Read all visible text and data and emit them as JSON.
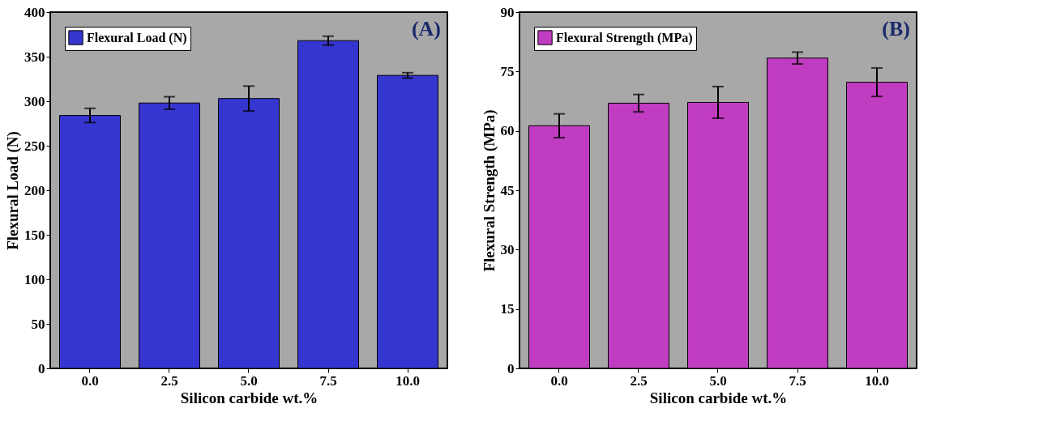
{
  "chart_data": [
    {
      "type": "bar",
      "xlabel": "Silicon carbide wt.%",
      "ylabel": "Flexural Load (N)",
      "categories": [
        "0.0",
        "2.5",
        "5.0",
        "7.5",
        "10.0"
      ],
      "series": [
        {
          "name": "Flexural Load (N)",
          "color": "#3535d0",
          "values": [
            284,
            298,
            303,
            368,
            329
          ],
          "errors": [
            8,
            7,
            14,
            5,
            3
          ]
        }
      ],
      "ylim": [
        0,
        400
      ],
      "yticks": [
        0,
        50,
        100,
        150,
        200,
        250,
        300,
        350,
        400
      ],
      "legend": "top left",
      "annotations": [
        "(A)"
      ]
    },
    {
      "type": "bar",
      "xlabel": "Silicon carbide wt.%",
      "ylabel": "Flexural Strength (MPa)",
      "categories": [
        "0.0",
        "2.5",
        "5.0",
        "7.5",
        "10.0"
      ],
      "series": [
        {
          "name": "Flexural Strength (MPa)",
          "color": "#c03cc0",
          "values": [
            61.3,
            67.0,
            67.2,
            78.4,
            72.3
          ],
          "errors": [
            3.0,
            2.2,
            4.0,
            1.5,
            3.6
          ]
        }
      ],
      "ylim": [
        0,
        90
      ],
      "yticks": [
        0,
        15,
        30,
        45,
        60,
        75,
        90
      ],
      "legend": "top left",
      "annotations": [
        "(B)"
      ]
    }
  ]
}
